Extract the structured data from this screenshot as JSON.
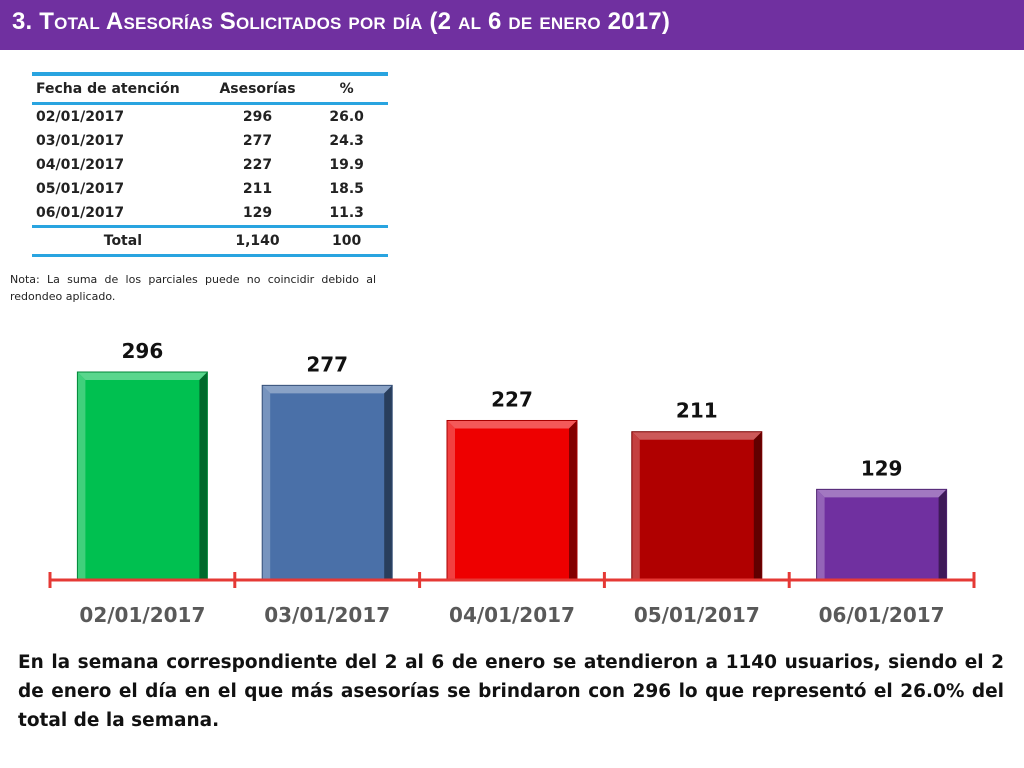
{
  "header": {
    "title": "3.  Total Asesorías Solicitados por día  (2 al 6 de enero  2017)"
  },
  "table": {
    "headers": [
      "Fecha de atención",
      "Asesorías",
      "%"
    ],
    "rows": [
      [
        "02/01/2017",
        "296",
        "26.0"
      ],
      [
        "03/01/2017",
        "277",
        "24.3"
      ],
      [
        "04/01/2017",
        "227",
        "19.9"
      ],
      [
        "05/01/2017",
        "211",
        "18.5"
      ],
      [
        "06/01/2017",
        "129",
        "11.3"
      ]
    ],
    "total": [
      "Total",
      "1,140",
      "100"
    ]
  },
  "note": "Nota: La suma de los parciales puede no coincidir debido al redondeo aplicado.",
  "chart_data": {
    "type": "bar",
    "categories": [
      "02/01/2017",
      "03/01/2017",
      "04/01/2017",
      "05/01/2017",
      "06/01/2017"
    ],
    "values": [
      296,
      277,
      227,
      211,
      129
    ],
    "data_labels": [
      "296",
      "277",
      "227",
      "211",
      "129"
    ],
    "colors": [
      "#00c050",
      "#4a70a8",
      "#ee0000",
      "#b00000",
      "#7030a0"
    ],
    "axis_color": "#e53935",
    "ylim": [
      0,
      296
    ],
    "grid": false,
    "legend": "none"
  },
  "summary": "En la semana correspondiente del 2 al 6 de enero se atendieron a 1140 usuarios, siendo el 2 de enero el día en el que más asesorías se brindaron con 296 lo que representó el 26.0% del total de la semana."
}
